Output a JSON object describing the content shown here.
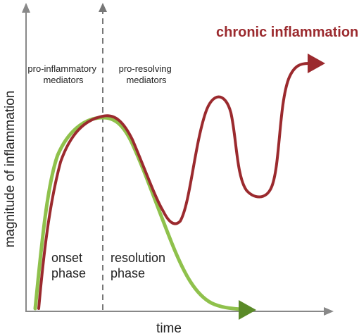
{
  "labels": {
    "title": "chronic inflammation",
    "pro_inflammatory": [
      "pro-inflammatory",
      "mediators"
    ],
    "pro_resolving": [
      "pro-resolving",
      "mediators"
    ],
    "onset_phase": [
      "onset",
      "phase"
    ],
    "resolution_phase": [
      "resolution",
      "phase"
    ],
    "x_axis": "time",
    "y_axis": "magnitude of inflammation"
  },
  "colors": {
    "chronic_curve": "#9b2a2e",
    "resolution_curve": "#8fc14c",
    "resolution_arrow": "#5a8a28",
    "axis": "#888888",
    "divider": "#777777",
    "text": "#222222"
  },
  "curves": [
    {
      "name": "chronic inflammation",
      "color_key": "chronic_curve",
      "shape": "rise-peak-oscillate-rise"
    },
    {
      "name": "resolution",
      "color_key": "resolution_curve",
      "shape": "rise-peak-decay"
    }
  ]
}
